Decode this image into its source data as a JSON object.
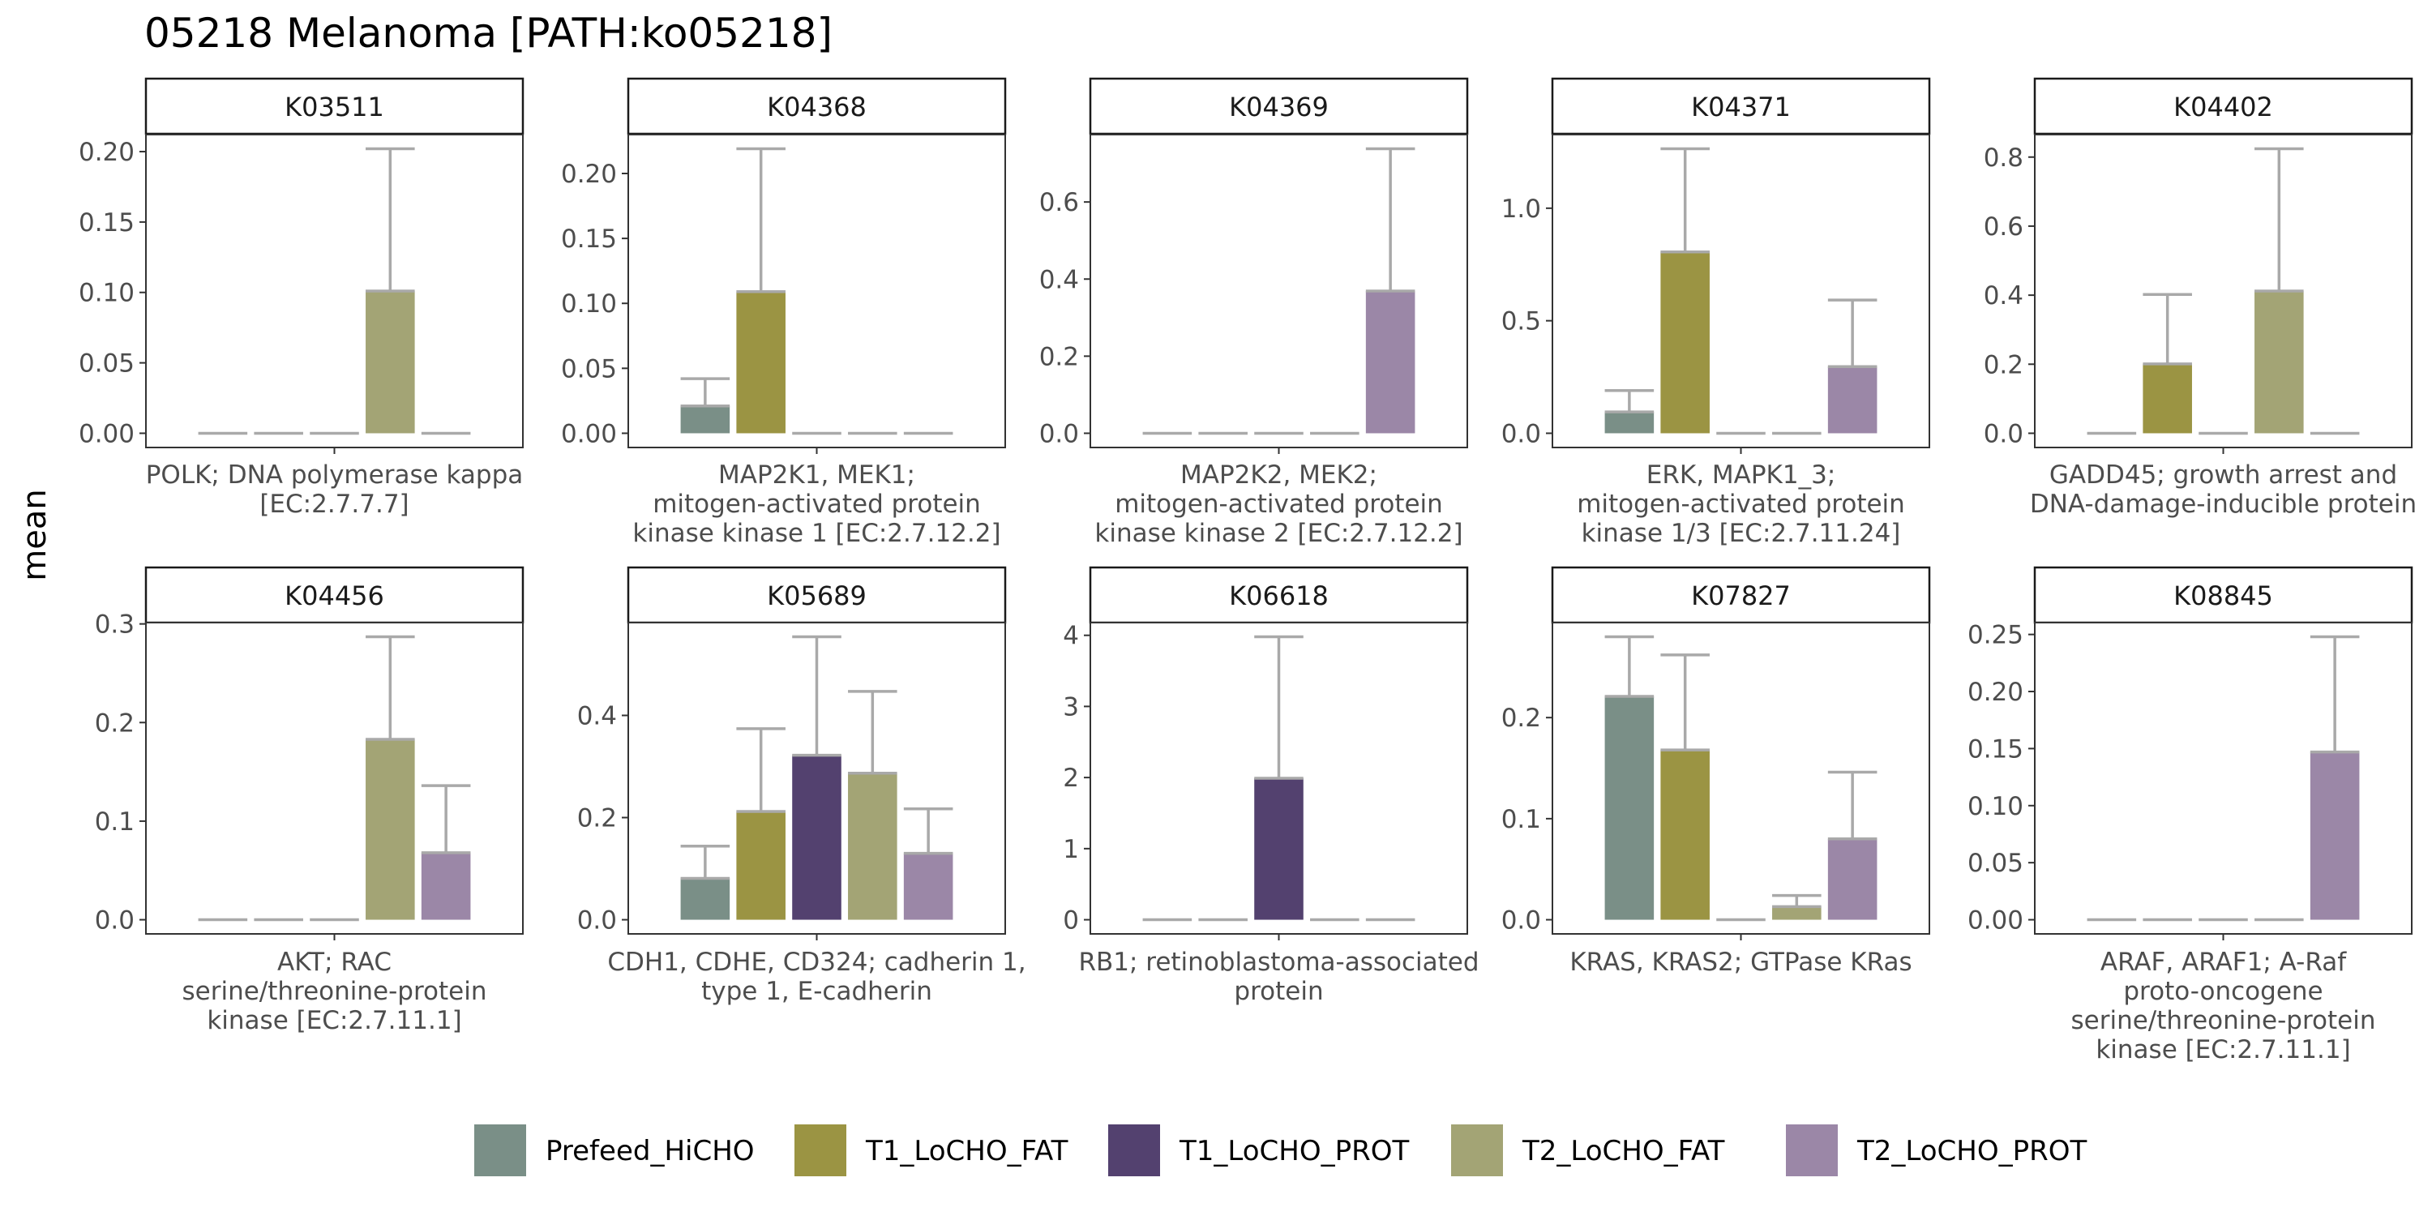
{
  "chart_data": {
    "type": "bar",
    "title": "05218 Melanoma [PATH:ko05218]",
    "ylabel": "mean",
    "xlabel": "",
    "groups": [
      "Prefeed_HiCHO",
      "T1_LoCHO_FAT",
      "T1_LoCHO_PROT",
      "T2_LoCHO_FAT",
      "T2_LoCHO_PROT"
    ],
    "colors": {
      "Prefeed_HiCHO": "#7a8f87",
      "T1_LoCHO_FAT": "#9b9443",
      "T1_LoCHO_PROT": "#53416f",
      "T2_LoCHO_FAT": "#a3a475",
      "T2_LoCHO_PROT": "#9b87a7",
      "error_bar": "#a9a9a9"
    },
    "legend_position": "bottom",
    "panels": [
      {
        "strip": "K03511",
        "xlabel_lines": [
          "POLK; DNA polymerase kappa",
          "[EC:2.7.7.7]"
        ],
        "ylim": [
          -0.0101,
          0.2121
        ],
        "ticks": [
          0.0,
          0.05,
          0.1,
          0.15,
          0.2
        ],
        "tick_labels": [
          "0.00",
          "0.05",
          "0.10",
          "0.15",
          "0.20"
        ],
        "means": [
          0,
          0,
          0,
          0.101,
          0
        ],
        "errors": [
          0,
          0,
          0,
          0.101,
          0
        ]
      },
      {
        "strip": "K04368",
        "xlabel_lines": [
          "MAP2K1, MEK1;",
          "mitogen-activated protein",
          "kinase kinase 1 [EC:2.7.12.2]"
        ],
        "ylim": [
          -0.01095,
          0.22995
        ],
        "ticks": [
          0.0,
          0.05,
          0.1,
          0.15,
          0.2
        ],
        "tick_labels": [
          "0.00",
          "0.05",
          "0.10",
          "0.15",
          "0.20"
        ],
        "means": [
          0.021,
          0.109,
          0,
          0,
          0
        ],
        "errors": [
          0.021,
          0.11,
          0,
          0,
          0
        ]
      },
      {
        "strip": "K04369",
        "xlabel_lines": [
          "MAP2K2, MEK2;",
          "mitogen-activated protein",
          "kinase kinase 2 [EC:2.7.12.2]"
        ],
        "ylim": [
          -0.0369,
          0.7749
        ],
        "ticks": [
          0.0,
          0.2,
          0.4,
          0.6
        ],
        "tick_labels": [
          "0.0",
          "0.2",
          "0.4",
          "0.6"
        ],
        "means": [
          0,
          0,
          0,
          0,
          0.369
        ],
        "errors": [
          0,
          0,
          0,
          0,
          0.369
        ]
      },
      {
        "strip": "K04371",
        "xlabel_lines": [
          "ERK, MAPK1_3;",
          "mitogen-activated protein",
          "kinase 1/3 [EC:2.7.11.24]"
        ],
        "ylim": [
          -0.0632,
          1.3272
        ],
        "ticks": [
          0.0,
          0.5,
          1.0
        ],
        "tick_labels": [
          "0.0",
          "0.5",
          "1.0"
        ],
        "means": [
          0.095,
          0.806,
          0,
          0,
          0.296
        ],
        "errors": [
          0.095,
          0.458,
          0,
          0,
          0.296
        ]
      },
      {
        "strip": "K04402",
        "xlabel_lines": [
          "GADD45; growth arrest and",
          "DNA-damage-inducible protein"
        ],
        "ylim": [
          -0.0412,
          0.8652
        ],
        "ticks": [
          0.0,
          0.2,
          0.4,
          0.6,
          0.8
        ],
        "tick_labels": [
          "0.0",
          "0.2",
          "0.4",
          "0.6",
          "0.8"
        ],
        "means": [
          0,
          0.201,
          0,
          0.412,
          0
        ],
        "errors": [
          0,
          0.201,
          0,
          0.412,
          0
        ]
      },
      {
        "strip": "K04456",
        "xlabel_lines": [
          "AKT; RAC",
          "serine/threonine-protein",
          "kinase [EC:2.7.11.1]"
        ],
        "ylim": [
          -0.01435,
          0.30135
        ],
        "ticks": [
          0.0,
          0.1,
          0.2,
          0.3
        ],
        "tick_labels": [
          "0.0",
          "0.1",
          "0.2",
          "0.3"
        ],
        "means": [
          0,
          0,
          0,
          0.183,
          0.068
        ],
        "errors": [
          0,
          0,
          0,
          0.104,
          0.068
        ]
      },
      {
        "strip": "K05689",
        "xlabel_lines": [
          "CDH1, CDHE, CD324; cadherin 1,",
          "type 1, E-cadherin"
        ],
        "ylim": [
          -0.0277,
          0.5817
        ],
        "ticks": [
          0.0,
          0.2,
          0.4
        ],
        "tick_labels": [
          "0.0",
          "0.2",
          "0.4"
        ],
        "means": [
          0.081,
          0.212,
          0.322,
          0.287,
          0.13
        ],
        "errors": [
          0.063,
          0.162,
          0.232,
          0.16,
          0.087
        ]
      },
      {
        "strip": "K06618",
        "xlabel_lines": [
          "RB1; retinoblastoma-associated",
          "protein"
        ],
        "ylim": [
          -0.199,
          4.179
        ],
        "ticks": [
          0,
          1,
          2,
          3,
          4
        ],
        "tick_labels": [
          "0",
          "1",
          "2",
          "3",
          "4"
        ],
        "means": [
          0,
          0,
          1.99,
          0,
          0
        ],
        "errors": [
          0,
          0,
          1.99,
          0,
          0
        ]
      },
      {
        "strip": "K07827",
        "xlabel_lines": [
          "KRAS, KRAS2; GTPase KRas"
        ],
        "ylim": [
          -0.014,
          0.294
        ],
        "ticks": [
          0.0,
          0.1,
          0.2
        ],
        "tick_labels": [
          "0.0",
          "0.1",
          "0.2"
        ],
        "means": [
          0.221,
          0.168,
          0,
          0.013,
          0.08
        ],
        "errors": [
          0.059,
          0.094,
          0,
          0.011,
          0.066
        ]
      },
      {
        "strip": "K08845",
        "xlabel_lines": [
          "ARAF, ARAF1; A-Raf",
          "proto-oncogene",
          "serine/threonine-protein",
          "kinase [EC:2.7.11.1]"
        ],
        "ylim": [
          -0.0124,
          0.2604
        ],
        "ticks": [
          0.0,
          0.05,
          0.1,
          0.15,
          0.2,
          0.25
        ],
        "tick_labels": [
          "0.00",
          "0.05",
          "0.10",
          "0.15",
          "0.20",
          "0.25"
        ],
        "means": [
          0,
          0,
          0,
          0,
          0.147
        ],
        "errors": [
          0,
          0,
          0,
          0,
          0.101
        ]
      }
    ]
  }
}
